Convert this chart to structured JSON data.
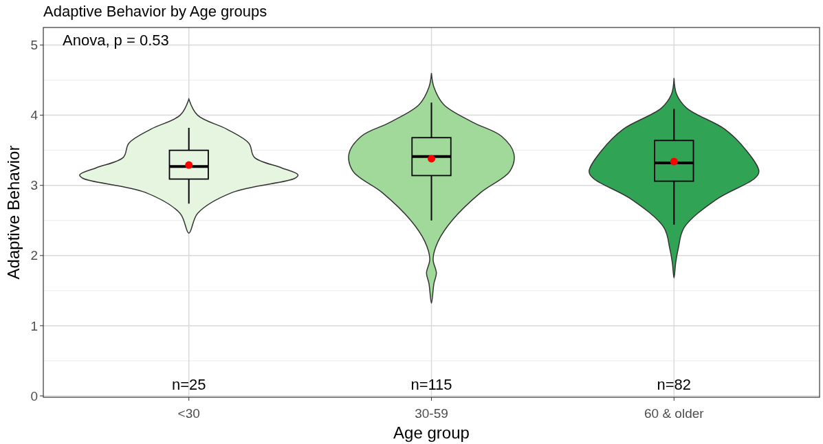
{
  "chart_data": {
    "type": "box",
    "title": "Adaptive Behavior by Age groups",
    "xlabel": "Age group",
    "ylabel": "Adaptive Behavior",
    "categories": [
      "<30",
      "30-59",
      "60 & older"
    ],
    "colors": [
      "#e5f5e0",
      "#a1d99b",
      "#31a354"
    ],
    "boxes": [
      {
        "low": 2.74,
        "q1": 3.09,
        "median": 3.27,
        "q3": 3.5,
        "high": 3.82,
        "mean": 3.29
      },
      {
        "low": 2.5,
        "q1": 3.14,
        "median": 3.41,
        "q3": 3.68,
        "high": 4.18,
        "mean": 3.38
      },
      {
        "low": 2.44,
        "q1": 3.06,
        "median": 3.32,
        "q3": 3.64,
        "high": 4.09,
        "mean": 3.34
      }
    ],
    "ylim": [
      0,
      5.25
    ],
    "yticks": [
      0,
      1,
      2,
      3,
      4,
      5
    ],
    "grid": true,
    "annotations": [
      "Anova, p = 0.53",
      "n=25",
      "n=115",
      "n=82"
    ]
  }
}
